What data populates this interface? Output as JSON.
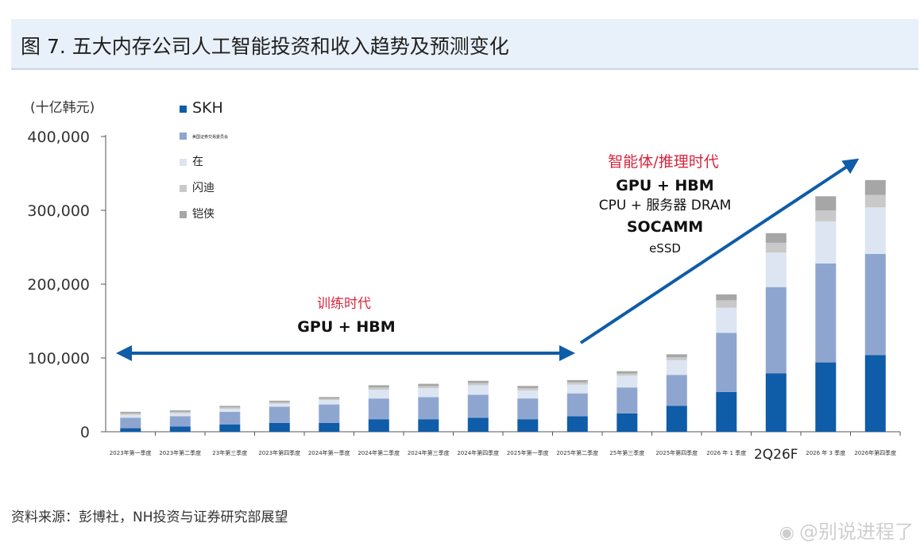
{
  "title": "图 7. 五大内存公司人工智能投资和收入趋势及预测变化",
  "source": "资料来源：彭博社，NH投资与证券研究部展望",
  "watermark": {
    "icon": "weibo-icon",
    "text": "@别说进程了"
  },
  "chart_data": {
    "type": "bar",
    "stacked": true,
    "unit_label": "(十亿韩元)",
    "ylim": [
      0,
      400000
    ],
    "yticks": [
      "0",
      "100,000",
      "200,000",
      "300,000",
      "400,000"
    ],
    "grid": false,
    "legend_position": "top-left",
    "categories": [
      "2023年第一季度",
      "2023年第二季度",
      "23年第三季度",
      "2023年第四季度",
      "2024年第一季度",
      "2024年第二季度",
      "2024年第三季度",
      "2024年第四季度",
      "2025年第一季度",
      "2025年第二季度",
      "25年第三季度",
      "2025年第四季度",
      "2026 年 1 季度",
      "2Q26F",
      "2026 年 3 季度",
      "2026年第四季度"
    ],
    "series": [
      {
        "name": "SKH",
        "color": "#0f5ca8",
        "values": [
          5000,
          7000,
          10000,
          12000,
          12000,
          17000,
          17000,
          19000,
          17000,
          21000,
          25000,
          35000,
          54000,
          79000,
          94000,
          104000
        ]
      },
      {
        "name": "美国证券交易委员会",
        "color": "#8ea6cf",
        "values": [
          14000,
          14000,
          17000,
          22000,
          25000,
          28000,
          30000,
          31000,
          28000,
          31000,
          35000,
          42000,
          80000,
          117000,
          134000,
          137000
        ]
      },
      {
        "name": "在",
        "color": "#dce5f1",
        "values": [
          4000,
          4000,
          4000,
          4000,
          6000,
          12000,
          12000,
          13000,
          11000,
          12000,
          16000,
          20000,
          34000,
          47000,
          57000,
          63000
        ]
      },
      {
        "name": "闪迪",
        "color": "#c9c9c9",
        "values": [
          2000,
          2000,
          2000,
          2000,
          2000,
          3000,
          3000,
          3000,
          3000,
          3000,
          3000,
          4000,
          10000,
          13000,
          15000,
          17000
        ]
      },
      {
        "name": "铠侠",
        "color": "#a6a6a6",
        "values": [
          2000,
          2000,
          2000,
          2000,
          2000,
          3000,
          3000,
          3000,
          3000,
          3000,
          3000,
          4000,
          8000,
          13000,
          19000,
          20000
        ]
      }
    ],
    "annotations": {
      "training": {
        "era": "训练时代",
        "tech": "GPU + HBM"
      },
      "agent": {
        "era": "智能体/推理时代",
        "lines": [
          "GPU + HBM",
          "CPU + 服务器 DRAM",
          "SOCAMM",
          "eSSD"
        ]
      }
    }
  }
}
